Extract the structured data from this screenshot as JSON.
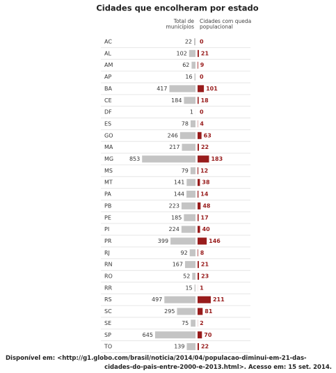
{
  "chart_data": {
    "type": "butterfly-bar",
    "title": "Cidades que encolheram por estado",
    "categories": [
      "AC",
      "AL",
      "AM",
      "AP",
      "BA",
      "CE",
      "DF",
      "ES",
      "GO",
      "MA",
      "MG",
      "MS",
      "MT",
      "PA",
      "PB",
      "PE",
      "PI",
      "PR",
      "RJ",
      "RN",
      "RO",
      "RR",
      "RS",
      "SC",
      "SE",
      "SP",
      "TO"
    ],
    "series": [
      {
        "name": "Total de municípios",
        "color": "#c4c4c4",
        "values": [
          22,
          102,
          62,
          16,
          417,
          184,
          1,
          78,
          246,
          217,
          853,
          79,
          141,
          144,
          223,
          185,
          224,
          399,
          92,
          167,
          52,
          15,
          497,
          295,
          75,
          645,
          139
        ]
      },
      {
        "name": "Cidades com queda populacional",
        "color": "#981c1c",
        "values": [
          0,
          21,
          9,
          0,
          101,
          18,
          0,
          4,
          63,
          22,
          183,
          12,
          38,
          14,
          48,
          17,
          40,
          146,
          8,
          21,
          23,
          1,
          211,
          81,
          2,
          70,
          22
        ]
      }
    ],
    "source": [
      "Disponível em: <http://g1.globo.com/brasil/noticia/2014/04/populacao-diminui-em-21-das-",
      "cidades-do-pais-entre-2000-e-2013.html>. Acesso em: 15 set. 2014."
    ]
  }
}
